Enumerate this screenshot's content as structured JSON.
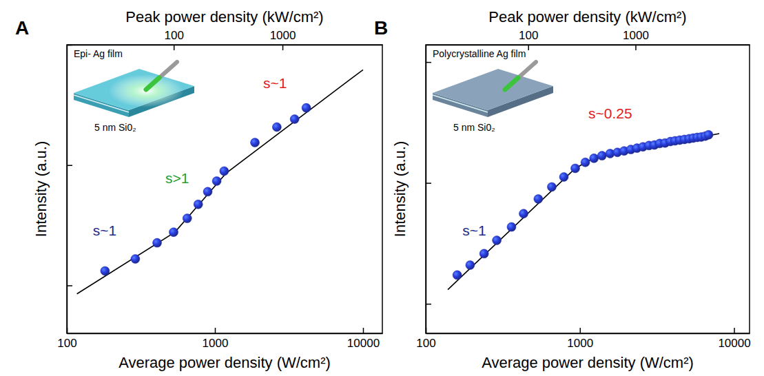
{
  "chart_data": [
    {
      "type": "scatter",
      "title": "A",
      "x_label": "Average power density (W/cm²)",
      "x2_label": "Peak power density (kW/cm²)",
      "y_label": "Intensity (a.u.)",
      "log": true,
      "tick_labels": "x",
      "xlim": [
        100,
        13500
      ],
      "xticks": [
        100,
        1000,
        10000
      ],
      "x2lim": [
        10.4,
        8280
      ],
      "x2ticks": [
        100,
        1000
      ],
      "ylim": [
        0.4,
        100
      ],
      "yticks": [
        1,
        10,
        100
      ],
      "inset_labels": [
        "Epi- Ag film",
        "5 nm Si0₂"
      ],
      "annotations": [
        {
          "text": "s~1",
          "color": "#1e2a8c"
        },
        {
          "text": "s>1",
          "color": "#22a030"
        },
        {
          "text": "s~1",
          "color": "#e02020"
        }
      ],
      "series": [
        {
          "type": "scatter",
          "marker": "circle",
          "color": "#2b3fe0",
          "x": [
            181,
            290,
            407,
            526,
            650,
            771,
            894,
            1028,
            1154,
            1862,
            2618,
            3451,
            4138
          ],
          "values": [
            1.32,
            1.66,
            2.26,
            2.77,
            3.61,
            4.72,
            6.01,
            7.37,
            8.92,
            15.4,
            20.7,
            24.1,
            29.9
          ]
        },
        {
          "type": "line",
          "line_style": "solid",
          "color": "#000000",
          "x": [
            117,
            537,
            1192,
            10000
          ],
          "values": [
            0.85,
            2.77,
            8.59,
            62
          ]
        }
      ]
    },
    {
      "type": "scatter",
      "title": "B",
      "x_label": "Average power density (W/cm²)",
      "x2_label": "Peak power density (kW/cm²)",
      "y_label": "Intensity (a.u.)",
      "log": true,
      "tick_labels": "x",
      "xlim": [
        100,
        12600
      ],
      "xticks": [
        100,
        1000,
        10000
      ],
      "x2lim": [
        11.1,
        11550
      ],
      "x2ticks": [
        100,
        1000
      ],
      "ylim": [
        0.57,
        139
      ],
      "yticks": [
        1,
        10,
        100
      ],
      "inset_labels": [
        "Polycrystalline Ag film",
        "5 nm Si0₂"
      ],
      "annotations": [
        {
          "text": "s~1",
          "color": "#1e2a8c"
        },
        {
          "text": "s~0.25",
          "color": "#e02020"
        }
      ],
      "series": [
        {
          "type": "scatter",
          "marker": "circle",
          "color": "#2b3fe0",
          "x": [
            160,
            194,
            239,
            289,
            360,
            431,
            537,
            657,
            787,
            933,
            1084,
            1234,
            1391,
            1570,
            1751,
            1936,
            2140,
            2344,
            2564,
            2805,
            3040,
            3291,
            3566,
            3864,
            4140,
            4443,
            4765,
            5114,
            5431,
            5768,
            6124,
            6503,
            6833
          ],
          "values": [
            1.73,
            2.09,
            2.6,
            3.35,
            4.32,
            5.57,
            7.37,
            9.27,
            11.2,
            13.2,
            14.8,
            16.0,
            16.8,
            17.5,
            17.9,
            18.4,
            18.9,
            19.4,
            19.9,
            20.4,
            20.6,
            21.2,
            21.4,
            22.0,
            22.3,
            22.6,
            22.9,
            23.2,
            23.5,
            23.8,
            24.0,
            24.4,
            25.0
          ]
        },
        {
          "type": "line",
          "line_style": "solid",
          "color": "#000000",
          "x": [
            139,
            933,
            1200,
            1618,
            8020
          ],
          "values": [
            1.31,
            13.2,
            15.8,
            17.3,
            25.6
          ]
        }
      ]
    }
  ]
}
